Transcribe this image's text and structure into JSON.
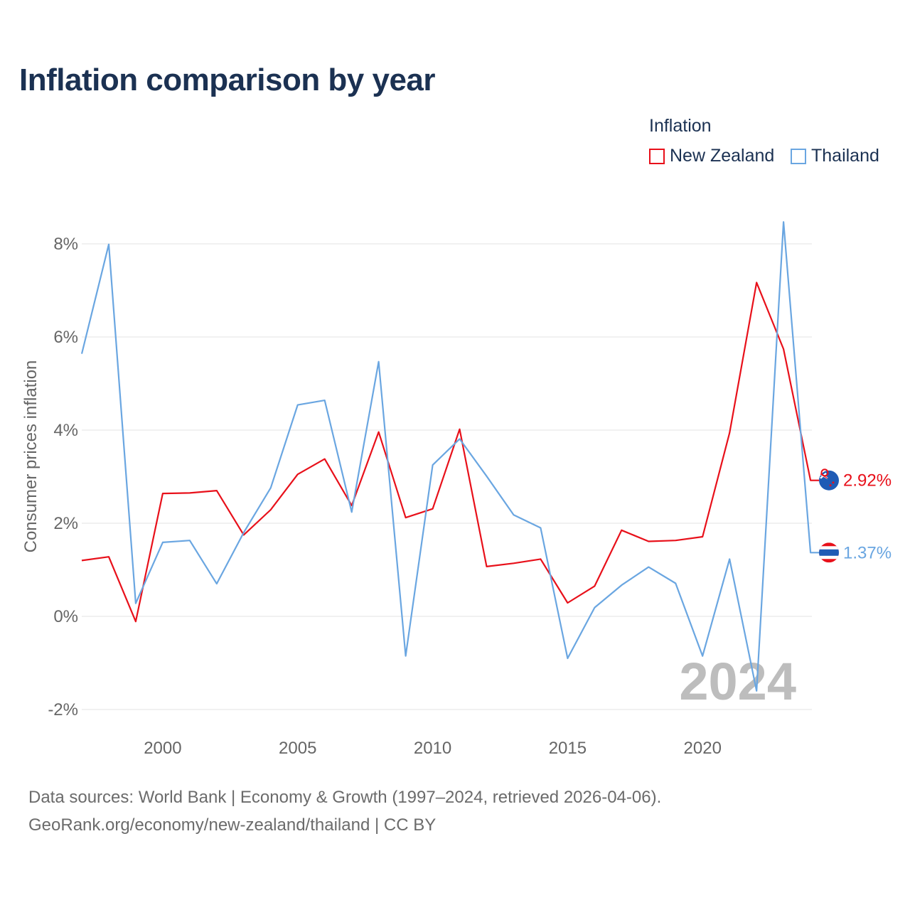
{
  "chart_data": {
    "type": "line",
    "title": "Inflation comparison by year",
    "legend_title": "Inflation",
    "ylabel": "Consumer prices inflation",
    "xlabel": "",
    "x": [
      1997,
      1998,
      1999,
      2000,
      2001,
      2002,
      2003,
      2004,
      2005,
      2006,
      2007,
      2008,
      2009,
      2010,
      2011,
      2012,
      2013,
      2014,
      2015,
      2016,
      2017,
      2018,
      2019,
      2020,
      2021,
      2022,
      2023,
      2024
    ],
    "xticks": [
      2000,
      2005,
      2010,
      2015,
      2020
    ],
    "ylim": [
      -2,
      8.5
    ],
    "yticks": [
      -2,
      0,
      2,
      4,
      6,
      8
    ],
    "ytick_labels": [
      "-2%",
      "0%",
      "2%",
      "4%",
      "6%",
      "8%"
    ],
    "year_label": "2024",
    "series": [
      {
        "name": "New Zealand",
        "color": "#e8101a",
        "end_label": "2.92%",
        "values": [
          1.2,
          1.28,
          -0.11,
          2.64,
          2.65,
          2.7,
          1.75,
          2.29,
          3.05,
          3.38,
          2.38,
          3.96,
          2.12,
          2.31,
          4.02,
          1.07,
          1.14,
          1.23,
          0.29,
          0.65,
          1.85,
          1.61,
          1.63,
          1.71,
          3.94,
          7.17,
          5.74,
          2.92
        ]
      },
      {
        "name": "Thailand",
        "color": "#6aa6e1",
        "end_label": "1.37%",
        "values": [
          5.64,
          7.99,
          0.28,
          1.59,
          1.63,
          0.7,
          1.8,
          2.76,
          4.54,
          4.64,
          2.24,
          5.47,
          -0.85,
          3.25,
          3.81,
          3.01,
          2.18,
          1.9,
          -0.9,
          0.19,
          0.67,
          1.06,
          0.71,
          -0.85,
          1.23,
          -1.6,
          8.47,
          1.37
        ]
      }
    ]
  },
  "source": {
    "line1": "Data sources: World Bank | Economy & Growth (1997–2024, retrieved 2026-04-06).",
    "line2": "GeoRank.org/economy/new-zealand/thailand | CC BY"
  }
}
